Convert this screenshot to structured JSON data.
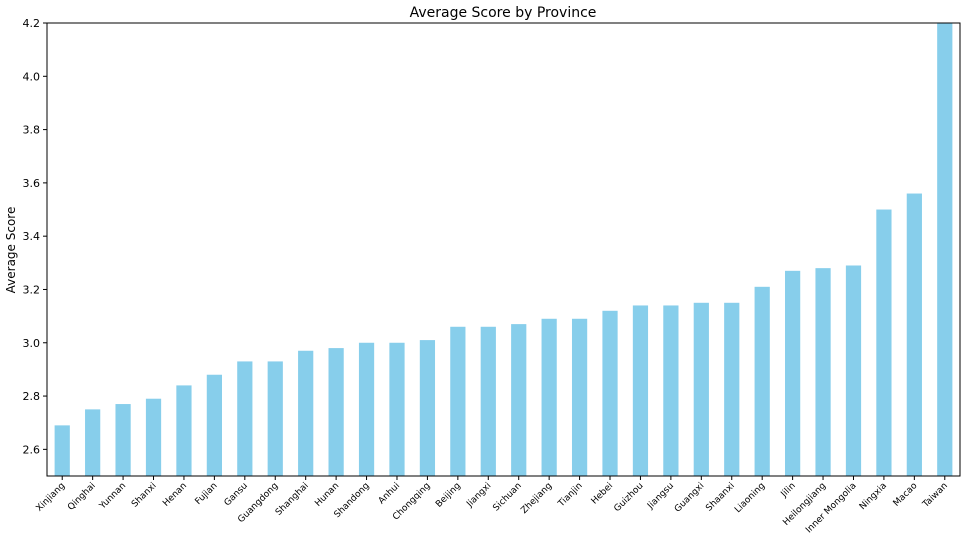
{
  "chart_data": {
    "type": "bar",
    "title": "Average Score by Province",
    "xlabel": "",
    "ylabel": "Average Score",
    "ylim": [
      2.5,
      4.2
    ],
    "yticks": [
      2.6,
      2.8,
      3.0,
      3.2,
      3.4,
      3.6,
      3.8,
      4.0,
      4.2
    ],
    "ytick_labels": [
      "2.6",
      "2.8",
      "3.0",
      "3.2",
      "3.4",
      "3.6",
      "3.8",
      "4.0",
      "4.2"
    ],
    "grid": false,
    "bar_color": "#87CEEB",
    "categories": [
      "Xinjiang",
      "Qinghai",
      "Yunnan",
      "Shanxi",
      "Henan",
      "Fujian",
      "Gansu",
      "Guangdong",
      "Shanghai",
      "Hunan",
      "Shandong",
      "Anhui",
      "Chongqing",
      "Beijing",
      "Jiangxi",
      "Sichuan",
      "Zhejiang",
      "Tianjin",
      "Hebei",
      "Guizhou",
      "Jiangsu",
      "Guangxi",
      "Shaanxi",
      "Liaoning",
      "Jilin",
      "Heilongjiang",
      "Inner Mongolia",
      "Ningxia",
      "Macao",
      "Taiwan"
    ],
    "values": [
      2.69,
      2.75,
      2.77,
      2.79,
      2.84,
      2.88,
      2.93,
      2.93,
      2.97,
      2.98,
      3.0,
      3.0,
      3.01,
      3.06,
      3.06,
      3.07,
      3.09,
      3.09,
      3.12,
      3.14,
      3.14,
      3.15,
      3.15,
      3.21,
      3.27,
      3.28,
      3.29,
      3.5,
      3.56,
      4.2
    ]
  }
}
